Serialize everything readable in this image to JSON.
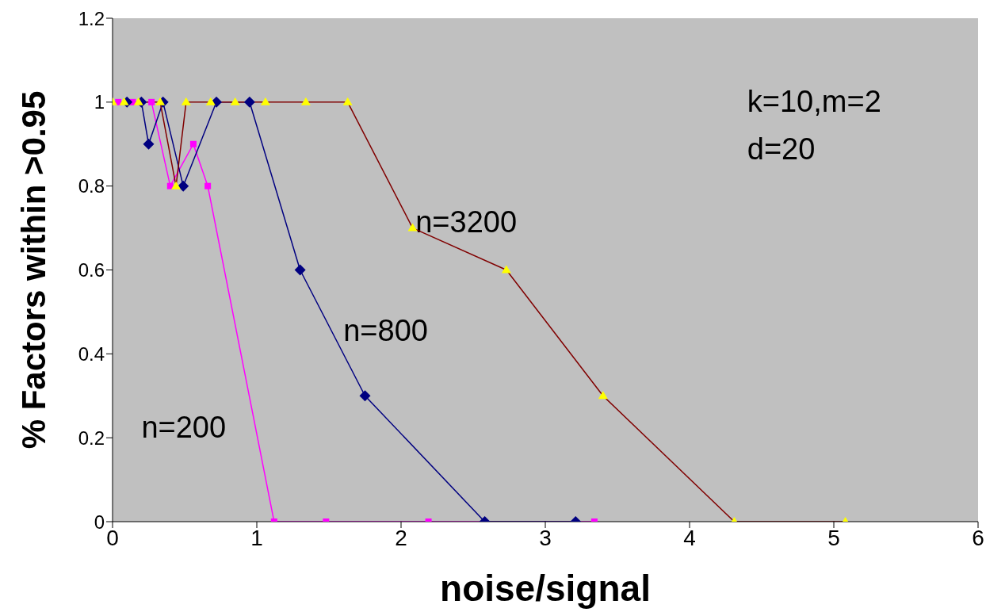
{
  "chart_data": {
    "type": "line",
    "xlabel": "noise/signal",
    "ylabel": "% Factors within >0.95",
    "xlim": [
      0,
      6
    ],
    "xticks": [
      0,
      1,
      2,
      3,
      4,
      5,
      6
    ],
    "ylim": [
      0,
      1.2
    ],
    "yticks": [
      0,
      0.2,
      0.4,
      0.6,
      0.8,
      1,
      1.2
    ],
    "annotations": [
      "k=10,m=2",
      "d=20"
    ],
    "series": [
      {
        "name": "n=200",
        "color": "#ff00ff",
        "marker": "square",
        "x": [
          0.04,
          0.14,
          0.27,
          0.4,
          0.56,
          0.66,
          1.12,
          1.48,
          2.19,
          3.34
        ],
        "values": [
          1,
          1,
          1,
          0.8,
          0.9,
          0.8,
          0,
          0,
          0,
          0
        ]
      },
      {
        "name": "n=800",
        "color": "#000080",
        "marker": "diamond",
        "x": [
          0.1,
          0.2,
          0.25,
          0.35,
          0.49,
          0.72,
          0.95,
          1.3,
          1.75,
          2.58,
          3.21
        ],
        "values": [
          1,
          1,
          0.9,
          1,
          0.8,
          1,
          1,
          0.6,
          0.3,
          0,
          0
        ]
      },
      {
        "name": "n=3200",
        "color": "#800000",
        "marker": "triangle",
        "x": [
          0,
          0.08,
          0.18,
          0.33,
          0.44,
          0.51,
          0.68,
          0.85,
          1.06,
          1.34,
          1.63,
          2.08,
          2.73,
          3.4,
          4.31,
          5.08
        ],
        "values": [
          1,
          1,
          1,
          1,
          0.8,
          1,
          1,
          1,
          1,
          1,
          1,
          0.7,
          0.6,
          0.3,
          0,
          0
        ]
      }
    ]
  }
}
